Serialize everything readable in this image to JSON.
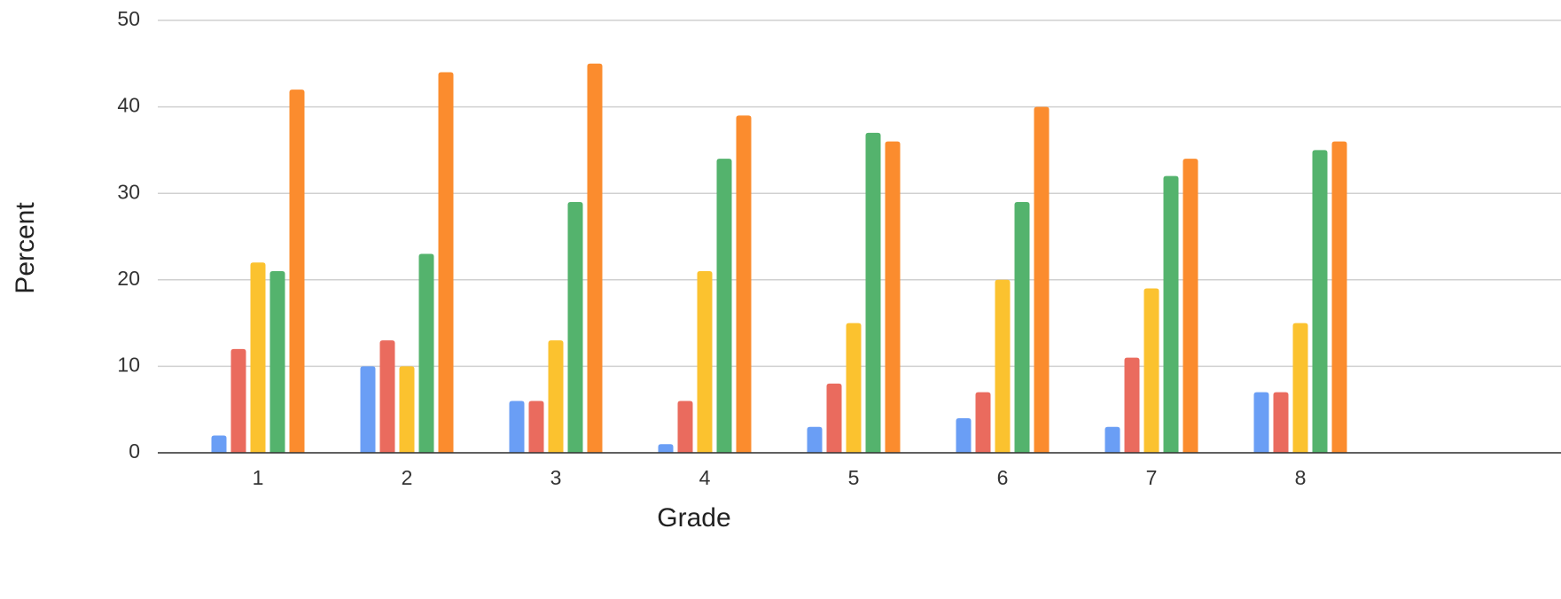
{
  "chart_data": {
    "type": "bar",
    "x_label": "Grade",
    "y_label": "Percent",
    "categories": [
      "1",
      "2",
      "3",
      "4",
      "5",
      "6",
      "7",
      "8"
    ],
    "series": [
      {
        "color": "#6a9ef5",
        "values": [
          2,
          10,
          6,
          1,
          3,
          4,
          3,
          7
        ]
      },
      {
        "color": "#ea6b5e",
        "values": [
          12,
          13,
          6,
          6,
          8,
          7,
          11,
          7
        ]
      },
      {
        "color": "#fbc22f",
        "values": [
          22,
          10,
          13,
          21,
          15,
          20,
          19,
          15
        ]
      },
      {
        "color": "#54b36d",
        "values": [
          21,
          23,
          29,
          34,
          37,
          29,
          32,
          35
        ]
      },
      {
        "color": "#fb8c2e",
        "values": [
          42,
          44,
          45,
          39,
          36,
          40,
          34,
          36
        ]
      }
    ],
    "ylim": [
      0,
      50
    ],
    "yticks": [
      0,
      10,
      20,
      30,
      40,
      50
    ],
    "grid": true
  }
}
